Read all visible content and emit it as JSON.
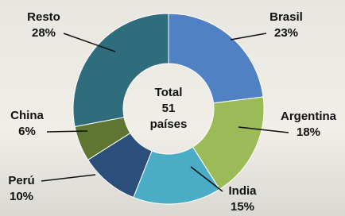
{
  "chart_data": {
    "type": "pie",
    "categories": [
      "Brasil",
      "Argentina",
      "India",
      "Perú",
      "China",
      "Resto"
    ],
    "values": [
      23,
      18,
      15,
      10,
      6,
      28
    ],
    "value_labels": [
      "23%",
      "18%",
      "15%",
      "10%",
      "6%",
      "28%"
    ],
    "colors": [
      "#4f81c4",
      "#9bbb59",
      "#4bacc6",
      "#2b4f7a",
      "#5f7532",
      "#2f6d7c"
    ],
    "center_text": [
      "Total",
      "51",
      "países"
    ]
  }
}
